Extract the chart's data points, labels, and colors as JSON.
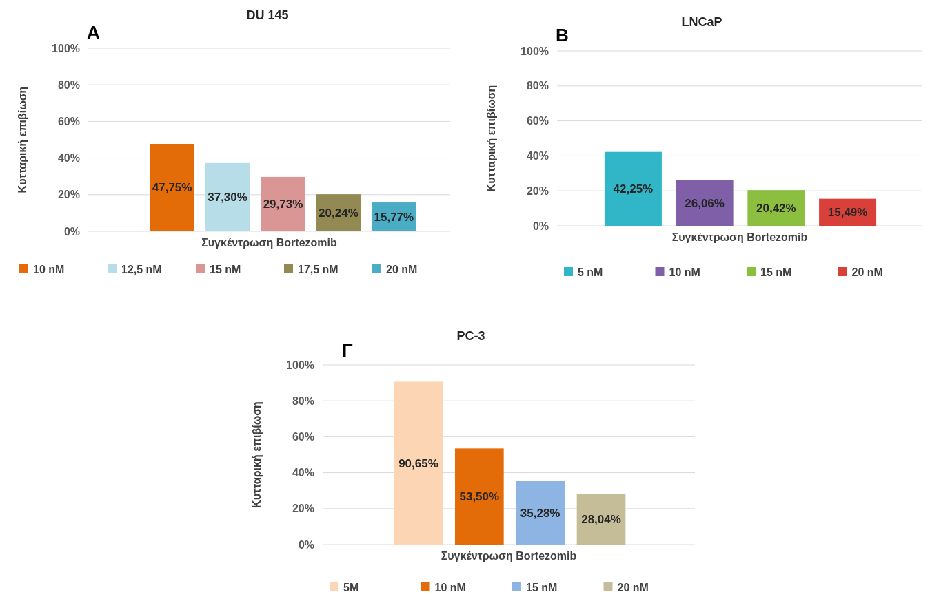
{
  "chart_data": [
    {
      "type": "bar",
      "title": "DU 145",
      "annotations": [
        "A"
      ],
      "ylabel": "Κυτταρική επιβίωση",
      "xlabel": "Συγκέντρωση Bortezomib",
      "categories": [
        null
      ],
      "ylim": [
        0,
        100
      ],
      "yticks": [
        {
          "value": 0,
          "label": "0%"
        },
        {
          "value": 20,
          "label": "20%"
        },
        {
          "value": 40,
          "label": "40%"
        },
        {
          "value": 60,
          "label": "60%"
        },
        {
          "value": 80,
          "label": "80%"
        },
        {
          "value": 100,
          "label": "100%"
        }
      ],
      "grid": "y",
      "legend": "bottom",
      "series": [
        {
          "name": "10 nM",
          "color": "#e36c09",
          "values": [
            47.75
          ],
          "value_labels": [
            "47,75%"
          ]
        },
        {
          "name": "12,5 nM",
          "color": "#b7dee8",
          "values": [
            37.3
          ],
          "value_labels": [
            "37,30%"
          ]
        },
        {
          "name": "15 nM",
          "color": "#da9694",
          "values": [
            29.73
          ],
          "value_labels": [
            "29,73%"
          ]
        },
        {
          "name": "17,5 nM",
          "color": "#938953",
          "values": [
            20.24
          ],
          "value_labels": [
            "20,24%"
          ]
        },
        {
          "name": "20 nM",
          "color": "#4bacc6",
          "values": [
            15.77
          ],
          "value_labels": [
            "15,77%"
          ]
        }
      ]
    },
    {
      "type": "bar",
      "title": "LNCaP",
      "annotations": [
        "B"
      ],
      "ylabel": "Κυτταρική επιβίωση",
      "xlabel": "Συγκέντρωση Bortezomib",
      "categories": [
        null
      ],
      "ylim": [
        0,
        100
      ],
      "yticks": [
        {
          "value": 0,
          "label": "0%"
        },
        {
          "value": 20,
          "label": "20%"
        },
        {
          "value": 40,
          "label": "40%"
        },
        {
          "value": 60,
          "label": "60%"
        },
        {
          "value": 80,
          "label": "80%"
        },
        {
          "value": 100,
          "label": "100%"
        }
      ],
      "grid": "y",
      "legend": "bottom",
      "series": [
        {
          "name": "5 nM",
          "color": "#31b6c8",
          "values": [
            42.25
          ],
          "value_labels": [
            "42,25%"
          ]
        },
        {
          "name": "10 nM",
          "color": "#7f5fa8",
          "values": [
            26.06
          ],
          "value_labels": [
            "26,06%"
          ]
        },
        {
          "name": "15 nM",
          "color": "#8cbf3f",
          "values": [
            20.42
          ],
          "value_labels": [
            "20,42%"
          ]
        },
        {
          "name": "20 nM",
          "color": "#d9403a",
          "values": [
            15.49
          ],
          "value_labels": [
            "15,49%"
          ]
        }
      ]
    },
    {
      "type": "bar",
      "title": "PC-3",
      "annotations": [
        "Γ"
      ],
      "ylabel": "Κυτταρική επιβίωση",
      "xlabel": "Συγκέντρωση Bortezomib",
      "categories": [
        null
      ],
      "ylim": [
        0,
        100
      ],
      "yticks": [
        {
          "value": 0,
          "label": "0%"
        },
        {
          "value": 20,
          "label": "20%"
        },
        {
          "value": 40,
          "label": "40%"
        },
        {
          "value": 60,
          "label": "60%"
        },
        {
          "value": 80,
          "label": "80%"
        },
        {
          "value": 100,
          "label": "100%"
        }
      ],
      "grid": "y",
      "legend": "bottom",
      "series": [
        {
          "name": "5M",
          "color": "#fcd5b5",
          "values": [
            90.65
          ],
          "value_labels": [
            "90,65%"
          ]
        },
        {
          "name": "10 nM",
          "color": "#e36c09",
          "values": [
            53.5
          ],
          "value_labels": [
            "53,50%"
          ]
        },
        {
          "name": "15 nM",
          "color": "#8eb4e3",
          "values": [
            35.28
          ],
          "value_labels": [
            "35,28%"
          ]
        },
        {
          "name": "20 nM",
          "color": "#c4bd97",
          "values": [
            28.04
          ],
          "value_labels": [
            "28,04%"
          ]
        }
      ]
    }
  ]
}
